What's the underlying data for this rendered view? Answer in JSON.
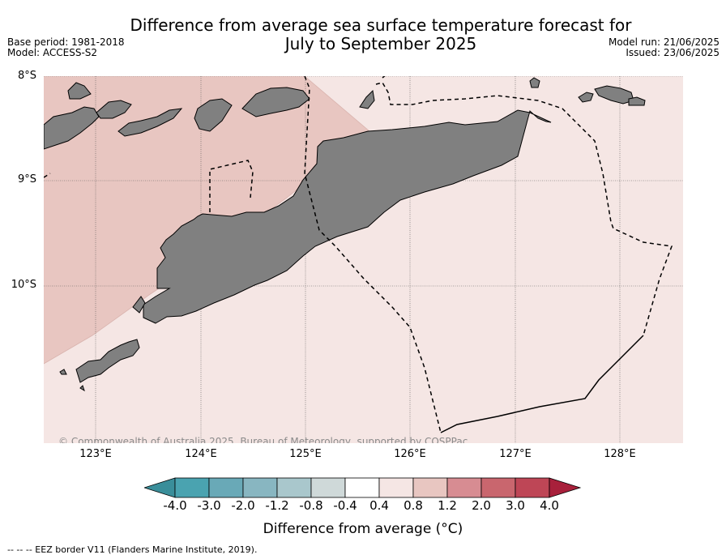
{
  "title_line1": "Difference from average sea surface temperature forecast for",
  "title_line2": "July to September 2025",
  "meta_left": {
    "base_period": "Base period: 1981-2018",
    "model": "Model: ACCESS-S2"
  },
  "meta_right": {
    "model_run": "Model run: 21/06/2025",
    "issued": "Issued: 23/06/2025"
  },
  "lat_labels": [
    "8°S",
    "9°S",
    "10°S"
  ],
  "lon_labels": [
    "123°E",
    "124°E",
    "125°E",
    "126°E",
    "127°E",
    "128°E"
  ],
  "copyright": "© Commonwealth of Australia 2025, Bureau of Meteorology, supported by COSPPac",
  "colorbar": {
    "ticks": [
      "-4.0",
      "-3.0",
      "-2.0",
      "-1.2",
      "-0.8",
      "-0.4",
      "0.4",
      "0.8",
      "1.2",
      "2.0",
      "3.0",
      "4.0"
    ],
    "colors": [
      "#3a8e9a",
      "#4aa3b0",
      "#69a9b7",
      "#88b6c1",
      "#a9c7cc",
      "#cfd9d9",
      "#ffffff",
      "#f5e6e4",
      "#e8c6c1",
      "#d78c92",
      "#c9666e",
      "#be4656",
      "#a8203b"
    ],
    "label": "Difference from average (°C)"
  },
  "footnote": "--  --  -- EEZ border V11 (Flanders Marine Institute, 2019).",
  "colors": {
    "anomaly_0_4_to_0_8": "#f5e6e4",
    "anomaly_0_8_to_1_2": "#e8c6c1",
    "land": "#808080"
  }
}
